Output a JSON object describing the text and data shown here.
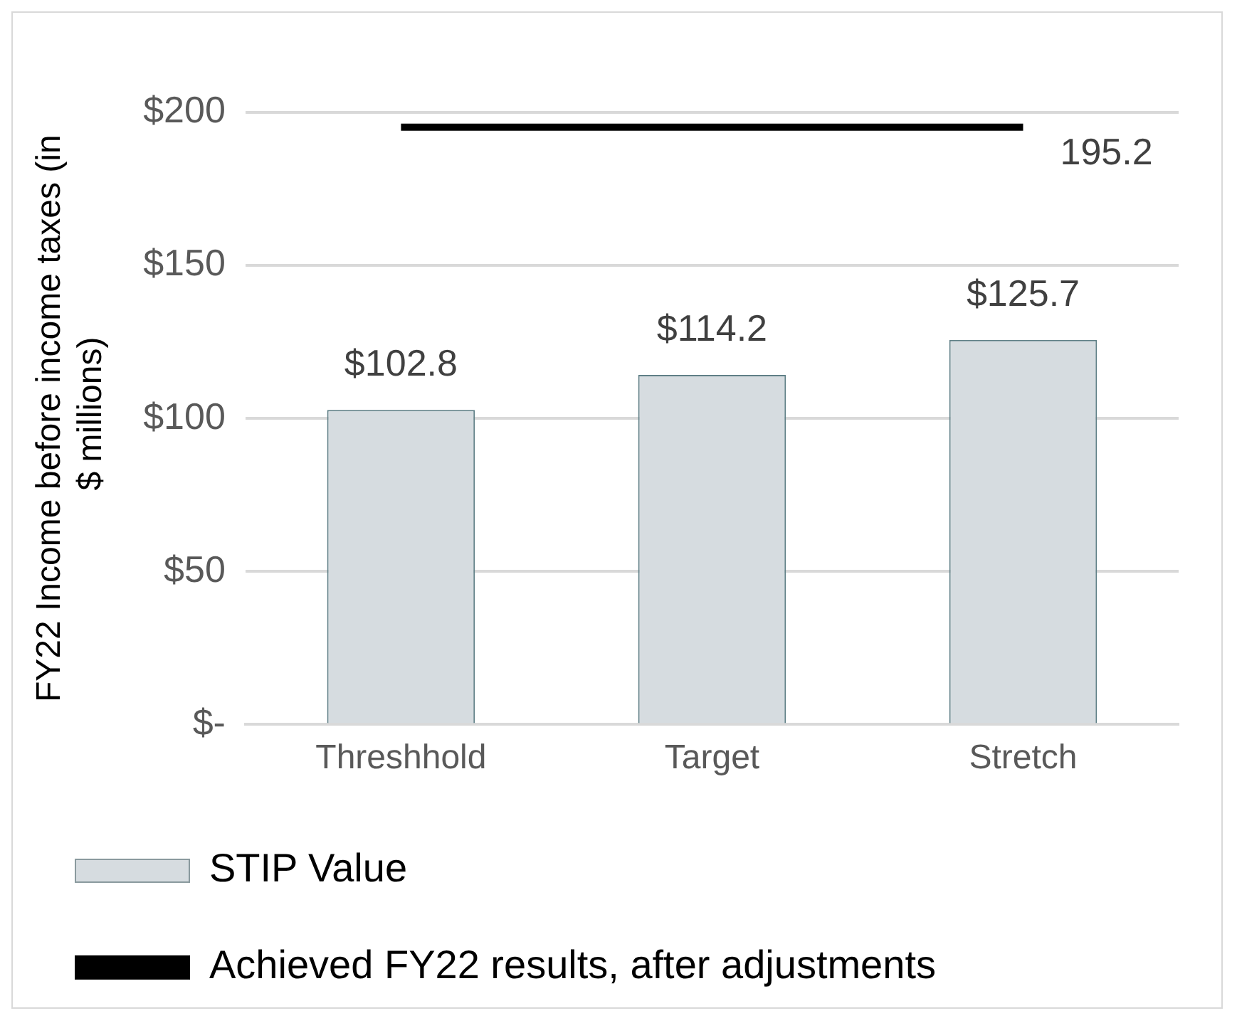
{
  "chart_data": {
    "type": "bar",
    "categories": [
      "Threshhold",
      "Target",
      "Stretch"
    ],
    "ylabel": "FY22 Income before income taxes (in $ millions)",
    "series": [
      {
        "name": "STIP Value",
        "color": "#d6dce0",
        "values": [
          102.8,
          114.2,
          125.7
        ],
        "value_labels": [
          "$102.8",
          "$114.2",
          "$125.7"
        ]
      },
      {
        "name": "Achieved FY22 results, after adjustments",
        "type": "line",
        "color": "#000000",
        "values": [
          195.2,
          195.2,
          195.2
        ],
        "value_labels": [
          null,
          null,
          "195.2"
        ]
      }
    ],
    "ylim": [
      0,
      200
    ],
    "yticks": [
      {
        "value": 0,
        "label": "$-"
      },
      {
        "value": 50,
        "label": "$50"
      },
      {
        "value": 100,
        "label": "$100"
      },
      {
        "value": 150,
        "label": "$150"
      },
      {
        "value": 200,
        "label": "$200"
      }
    ],
    "grid": "y",
    "legend": "bottom",
    "marker": "none"
  }
}
